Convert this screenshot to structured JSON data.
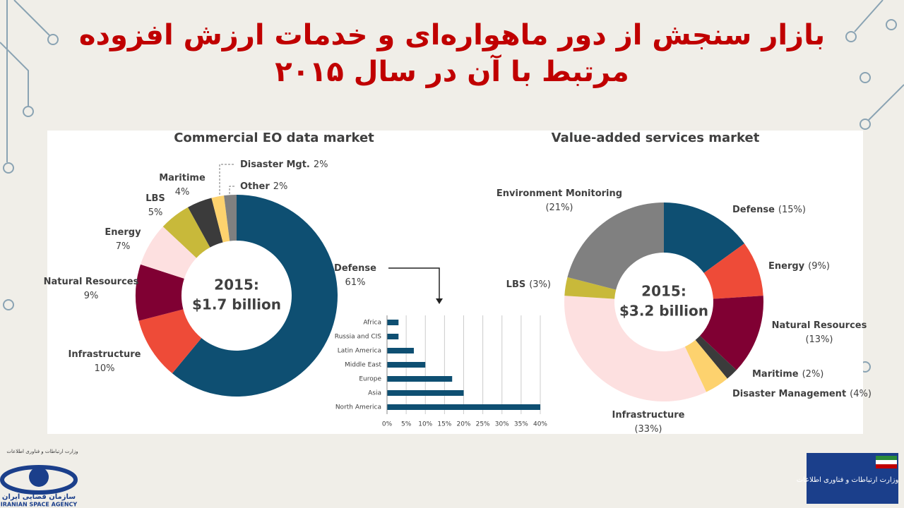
{
  "slide": {
    "title_line1": "بازار سنجش از دور ماهواره‌ای و خدمات ارزش افزوده",
    "title_line2": "مرتبط با آن در سال ۲۰۱۵",
    "logo_left_top": "وزارت ارتباطات و فناوری اطلاعات",
    "logo_left_name": "سازمان فضایی ایران",
    "logo_left_en": "IRANIAN SPACE AGENCY",
    "logo_right": "وزارت ارتباطات و فناوری اطلاعات"
  },
  "chart_data": [
    {
      "type": "donut",
      "title": "Commercial EO data market",
      "center_title": "2015:",
      "center_value": "$1.7 billion",
      "categories": [
        "Defense",
        "Infrastructure",
        "Natural Resources",
        "Energy",
        "LBS",
        "Maritime",
        "Disaster Mgt.",
        "Other"
      ],
      "values": [
        61,
        10,
        9,
        7,
        5,
        4,
        2,
        2
      ],
      "value_labels": [
        "61%",
        "10%",
        "9%",
        "7%",
        "5%",
        "4%",
        "2%",
        "2%"
      ],
      "colors": [
        "#0e4f72",
        "#ee4b38",
        "#800033",
        "#fde0e0",
        "#c8b93a",
        "#3b3b3b",
        "#fdd26e",
        "#808080"
      ]
    },
    {
      "type": "donut",
      "title": "Value-added services market",
      "center_title": "2015:",
      "center_value": "$3.2 billion",
      "categories": [
        "Defense",
        "Energy",
        "Natural Resources",
        "Maritime",
        "Disaster Management",
        "Infrastructure",
        "LBS",
        "Environment Monitoring"
      ],
      "values": [
        15,
        9,
        13,
        2,
        4,
        33,
        3,
        21
      ],
      "value_labels": [
        "(15%)",
        "(9%)",
        "(13%)",
        "(2%)",
        "(4%)",
        "(33%)",
        "(3%)",
        "(21%)"
      ],
      "colors": [
        "#0e4f72",
        "#ee4b38",
        "#800033",
        "#3b3b3b",
        "#fdd26e",
        "#fde0e0",
        "#c8b93a",
        "#808080"
      ]
    },
    {
      "type": "hbar",
      "categories": [
        "Africa",
        "Russia and CIS",
        "Latin America",
        "Middle East",
        "Europe",
        "Asia",
        "North America"
      ],
      "values": [
        3,
        3,
        7,
        10,
        17,
        20,
        40
      ],
      "color": "#0e4f72",
      "xlim": [
        0,
        40
      ],
      "grid": true,
      "xticks": [
        {
          "value": 0,
          "label": "0%"
        },
        {
          "value": 5,
          "label": "5%"
        },
        {
          "value": 10,
          "label": "10%"
        },
        {
          "value": 15,
          "label": "15%"
        },
        {
          "value": 20,
          "label": "20%"
        },
        {
          "value": 25,
          "label": "25%"
        },
        {
          "value": 30,
          "label": "30%"
        },
        {
          "value": 35,
          "label": "35%"
        },
        {
          "value": 40,
          "label": "40%"
        }
      ]
    }
  ]
}
